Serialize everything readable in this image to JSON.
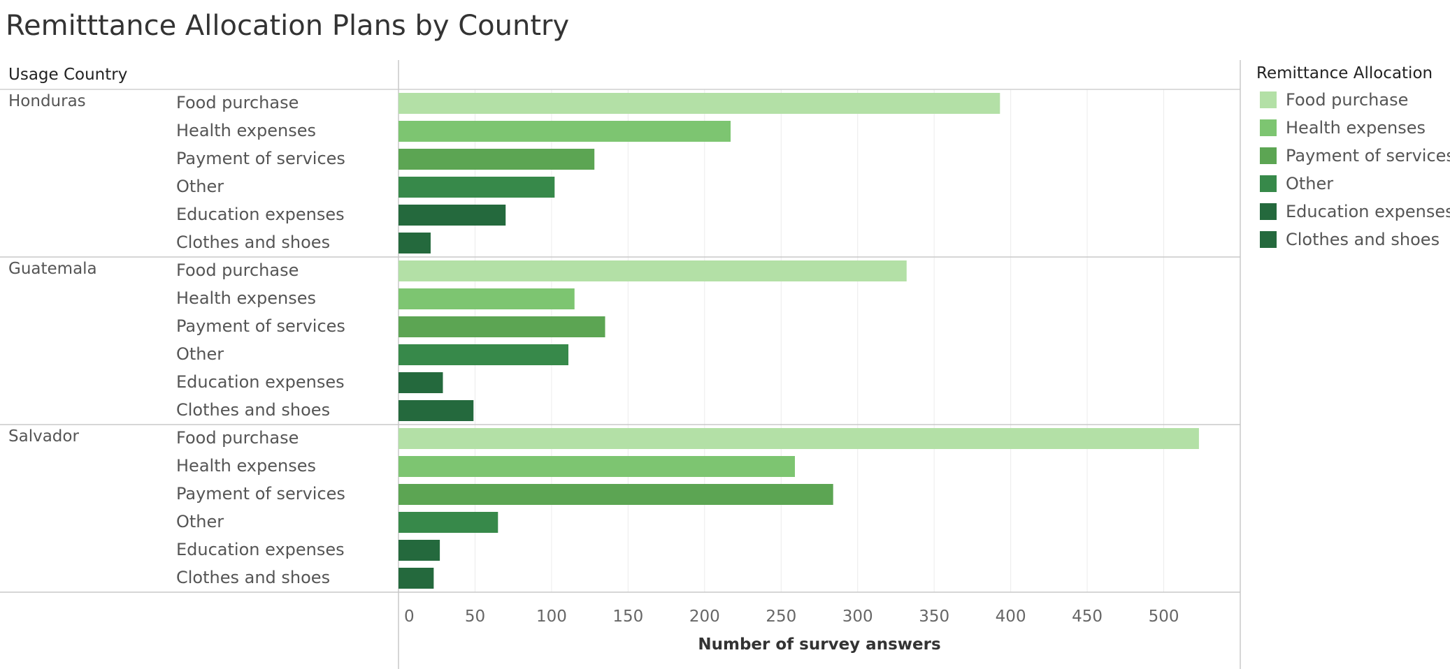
{
  "title": "Remitttance Allocation Plans by Country",
  "colors": {
    "Food purchase": "#b3e0a6",
    "Health expenses": "#7dc571",
    "Payment of services": "#5ca553",
    "Other": "#37894a",
    "Education expenses": "#24693d",
    "Clothes and shoes": "#24693d"
  },
  "chart_data": {
    "type": "bar",
    "orientation": "horizontal",
    "title": "Remitttance Allocation Plans by Country",
    "row_header": "Usage Country",
    "xlabel": "Number of survey answers",
    "xlim": [
      0,
      550
    ],
    "xticks": [
      0,
      50,
      100,
      150,
      200,
      250,
      300,
      350,
      400,
      450,
      500
    ],
    "grid": true,
    "legend": {
      "title": "Remittance Allocation",
      "placement": "right",
      "items": [
        "Food purchase",
        "Health expenses",
        "Payment of services",
        "Other",
        "Education expenses",
        "Clothes and shoes"
      ]
    },
    "categories": [
      "Food purchase",
      "Health expenses",
      "Payment of services",
      "Other",
      "Education expenses",
      "Clothes and shoes"
    ],
    "groups": [
      {
        "name": "Honduras",
        "values": [
          393,
          217,
          128,
          102,
          70,
          21
        ]
      },
      {
        "name": "Guatemala",
        "values": [
          332,
          115,
          135,
          111,
          29,
          49
        ]
      },
      {
        "name": "Salvador",
        "values": [
          523,
          259,
          284,
          65,
          27,
          23
        ]
      }
    ]
  }
}
